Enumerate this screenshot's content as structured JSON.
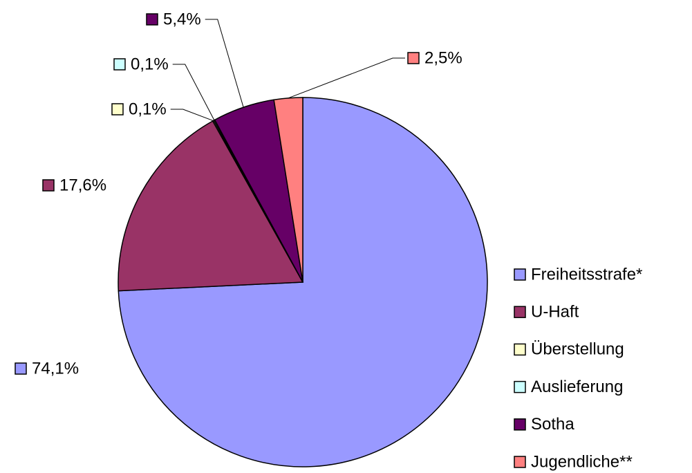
{
  "chart_data": {
    "type": "pie",
    "categories": [
      "Freiheitsstrafe*",
      "U-Haft",
      "Überstellung",
      "Auslieferung",
      "Sotha",
      "Jugendliche**"
    ],
    "values": [
      74.1,
      17.6,
      0.1,
      0.1,
      5.4,
      2.5
    ],
    "value_labels": [
      "74,1%",
      "17,6%",
      "0,1%",
      "0,1%",
      "5,4%",
      "2,5%"
    ],
    "colors": [
      "#9999FF",
      "#993366",
      "#FFFFCC",
      "#CCFFFF",
      "#660066",
      "#FF8080"
    ],
    "legend": "right"
  }
}
